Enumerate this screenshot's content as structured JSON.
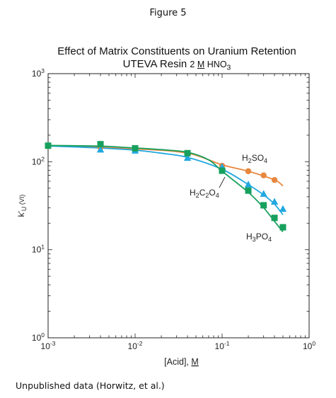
{
  "figure_label": "Figure 5",
  "source_note": "Unpublished data (Horwitz, et al.)",
  "chart_data": {
    "type": "line",
    "title": "Effect of Matrix Constituents on Uranium Retention",
    "subtitle": {
      "resin": "UTEVA Resin",
      "conc": "2",
      "unit": "M",
      "acid": "HNO",
      "acid_sub": "3"
    },
    "xlabel": {
      "text": "[Acid], ",
      "unit": "M"
    },
    "ylabel": {
      "base": "k'",
      "sub": "U",
      "suffix": "(VI)"
    },
    "xscale": "log",
    "yscale": "log",
    "xlim": [
      0.001,
      1
    ],
    "ylim": [
      1,
      1000
    ],
    "x_ticks": [
      {
        "base": "10",
        "exp": "-3",
        "value": 0.001
      },
      {
        "base": "10",
        "exp": "-2",
        "value": 0.01
      },
      {
        "base": "10",
        "exp": "-1",
        "value": 0.1
      },
      {
        "base": "10",
        "exp": "0",
        "value": 1
      }
    ],
    "y_ticks": [
      {
        "base": "10",
        "exp": "0",
        "value": 1
      },
      {
        "base": "10",
        "exp": "1",
        "value": 10
      },
      {
        "base": "10",
        "exp": "2",
        "value": 100
      },
      {
        "base": "10",
        "exp": "3",
        "value": 1000
      }
    ],
    "series": [
      {
        "name": "H2SO4",
        "label": {
          "parts": [
            [
              "H",
              ""
            ],
            [
              "2",
              "sub"
            ],
            [
              "SO",
              ""
            ],
            [
              "4",
              "sub"
            ]
          ]
        },
        "color": "#e8873e",
        "marker": "circle",
        "x": [
          0.001,
          0.004,
          0.01,
          0.04,
          0.1,
          0.2,
          0.3,
          0.4
        ],
        "y": [
          150,
          145,
          138,
          122,
          90,
          78,
          70,
          62
        ],
        "curve": [
          [
            0.001,
            152
          ],
          [
            0.01,
            140
          ],
          [
            0.04,
            125
          ],
          [
            0.1,
            92
          ],
          [
            0.2,
            78
          ],
          [
            0.4,
            62
          ],
          [
            0.5,
            53
          ]
        ]
      },
      {
        "name": "H2C2O4",
        "label": {
          "parts": [
            [
              "H",
              ""
            ],
            [
              "2",
              "sub"
            ],
            [
              "C",
              ""
            ],
            [
              "2",
              "sub"
            ],
            [
              "O",
              ""
            ],
            [
              "4",
              "sub"
            ]
          ]
        },
        "color": "#21a8e0",
        "marker": "triangle",
        "x": [
          0.004,
          0.01,
          0.04,
          0.1,
          0.2,
          0.3,
          0.4,
          0.5
        ],
        "y": [
          137,
          133,
          110,
          87,
          55,
          43,
          35,
          29
        ],
        "curve": [
          [
            0.001,
            151
          ],
          [
            0.004,
            143
          ],
          [
            0.01,
            135
          ],
          [
            0.02,
            125
          ],
          [
            0.04,
            112
          ],
          [
            0.1,
            82
          ],
          [
            0.2,
            55
          ],
          [
            0.3,
            42
          ],
          [
            0.4,
            33
          ],
          [
            0.5,
            25
          ]
        ]
      },
      {
        "name": "H3PO4",
        "label": {
          "parts": [
            [
              "H",
              ""
            ],
            [
              "3",
              "sub"
            ],
            [
              "PO",
              ""
            ],
            [
              "4",
              "sub"
            ]
          ]
        },
        "color": "#17a05d",
        "marker": "square",
        "x": [
          0.001,
          0.004,
          0.01,
          0.04,
          0.1,
          0.2,
          0.3,
          0.4,
          0.5
        ],
        "y": [
          152,
          158,
          142,
          125,
          79,
          47,
          32,
          23,
          18
        ],
        "curve": [
          [
            0.001,
            153
          ],
          [
            0.004,
            150
          ],
          [
            0.01,
            143
          ],
          [
            0.02,
            137
          ],
          [
            0.04,
            128
          ],
          [
            0.07,
            105
          ],
          [
            0.1,
            78
          ],
          [
            0.2,
            45
          ],
          [
            0.3,
            30
          ],
          [
            0.4,
            21
          ],
          [
            0.5,
            16
          ]
        ]
      }
    ]
  }
}
